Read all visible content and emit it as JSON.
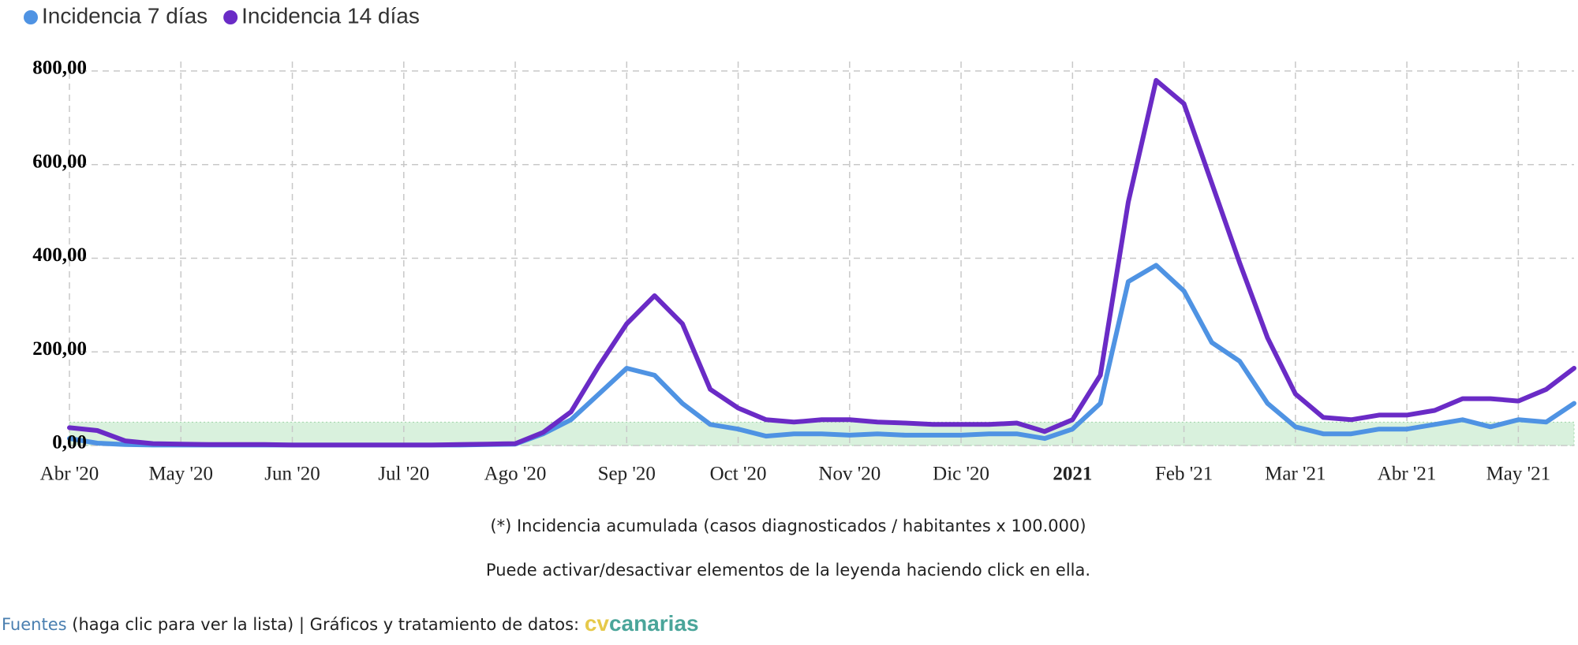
{
  "chart_data": {
    "type": "line",
    "series": [
      {
        "name": "Incidencia 7 días",
        "color": "#4f93e3",
        "values": [
          15,
          5,
          2,
          1,
          1,
          1,
          1,
          1,
          1,
          1,
          1,
          1,
          1,
          1,
          1,
          2,
          3,
          25,
          55,
          110,
          165,
          150,
          90,
          45,
          35,
          20,
          25,
          25,
          22,
          25,
          22,
          22,
          22,
          25,
          25,
          15,
          35,
          90,
          350,
          385,
          330,
          220,
          180,
          90,
          40,
          25,
          25,
          35,
          35,
          45,
          55,
          40,
          55,
          50,
          90
        ]
      },
      {
        "name": "Incidencia 14 días",
        "color": "#6a2bc6",
        "values": [
          38,
          32,
          10,
          4,
          3,
          2,
          2,
          2,
          1,
          1,
          1,
          1,
          1,
          1,
          2,
          3,
          4,
          28,
          72,
          170,
          260,
          320,
          260,
          120,
          80,
          55,
          50,
          55,
          55,
          50,
          48,
          45,
          45,
          45,
          48,
          30,
          55,
          150,
          520,
          780,
          730,
          560,
          390,
          230,
          110,
          60,
          55,
          65,
          65,
          75,
          100,
          100,
          95,
          120,
          165
        ]
      }
    ],
    "x": [
      0,
      0.25,
      0.5,
      0.75,
      1,
      1.25,
      1.5,
      1.75,
      2,
      2.25,
      2.5,
      2.75,
      3,
      3.25,
      3.5,
      3.75,
      4,
      4.25,
      4.5,
      4.75,
      5,
      5.25,
      5.5,
      5.75,
      6,
      6.25,
      6.5,
      6.75,
      7,
      7.25,
      7.5,
      7.75,
      8,
      8.25,
      8.5,
      8.75,
      9,
      9.25,
      9.5,
      9.75,
      10,
      10.25,
      10.5,
      10.75,
      11,
      11.25,
      11.5,
      11.75,
      12,
      12.25,
      12.5,
      12.75,
      13,
      13.25,
      13.5
    ],
    "xlim": [
      0,
      13.5
    ],
    "xticks": [
      {
        "value": 0,
        "label": "Abr '20"
      },
      {
        "value": 1,
        "label": "May '20"
      },
      {
        "value": 2,
        "label": "Jun '20"
      },
      {
        "value": 3,
        "label": "Jul '20"
      },
      {
        "value": 4,
        "label": "Ago '20"
      },
      {
        "value": 5,
        "label": "Sep '20"
      },
      {
        "value": 6,
        "label": "Oct '20"
      },
      {
        "value": 7,
        "label": "Nov '20"
      },
      {
        "value": 8,
        "label": "Dic '20"
      },
      {
        "value": 9,
        "label": "2021"
      },
      {
        "value": 10,
        "label": "Feb '21"
      },
      {
        "value": 11,
        "label": "Mar '21"
      },
      {
        "value": 12,
        "label": "Abr '21"
      },
      {
        "value": 13,
        "label": "May '21"
      }
    ],
    "ylim": [
      0,
      800
    ],
    "yticks": [
      {
        "value": 0,
        "label": "0,00"
      },
      {
        "value": 200,
        "label": "200,00"
      },
      {
        "value": 400,
        "label": "400,00"
      },
      {
        "value": 600,
        "label": "600,00"
      },
      {
        "value": 800,
        "label": "800,00"
      }
    ],
    "grid": true,
    "legend": "top-left",
    "band": {
      "from": 0,
      "to": 50,
      "color": "#d9f1dd"
    },
    "note": "(*) Incidencia acumulada (casos diagnosticados / habitantes x 100.000)",
    "hint": "Puede activar/desactivar elementos de la leyenda haciendo click en ella."
  },
  "footer": {
    "link": "Fuentes",
    "text": " (haga clic para ver la lista) | Gráficos y tratamiento de datos: ",
    "logo_a": "cv",
    "logo_b": "canarias"
  }
}
